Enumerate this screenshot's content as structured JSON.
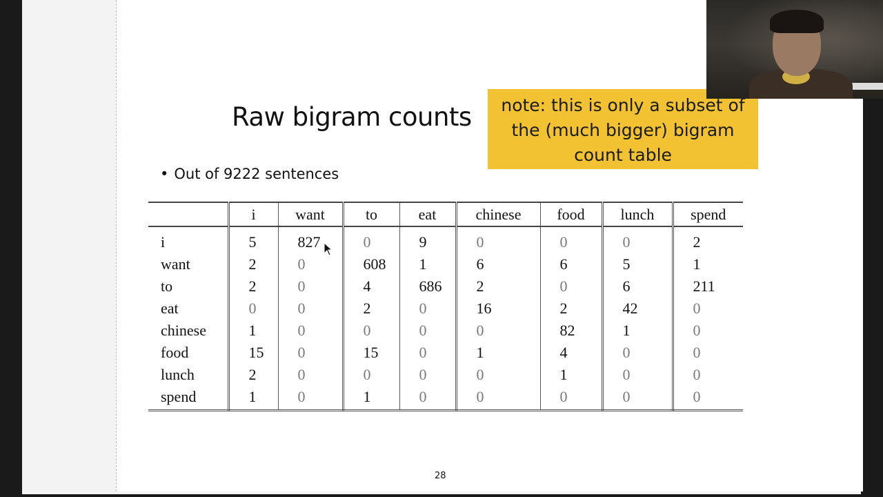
{
  "slide": {
    "title": "Raw bigram counts",
    "bullet": "Out of 9222 sentences",
    "page_number": "28"
  },
  "note": {
    "lines": [
      "note: this is only a subset of",
      "the (much bigger) bigram",
      "count table"
    ],
    "color": "#f2c232"
  },
  "table": {
    "columns": [
      "i",
      "want",
      "to",
      "eat",
      "chinese",
      "food",
      "lunch",
      "spend"
    ],
    "rows": [
      {
        "word": "i",
        "counts": [
          "5",
          "827",
          "0",
          "9",
          "0",
          "0",
          "0",
          "2"
        ]
      },
      {
        "word": "want",
        "counts": [
          "2",
          "0",
          "608",
          "1",
          "6",
          "6",
          "5",
          "1"
        ]
      },
      {
        "word": "to",
        "counts": [
          "2",
          "0",
          "4",
          "686",
          "2",
          "0",
          "6",
          "211"
        ]
      },
      {
        "word": "eat",
        "counts": [
          "0",
          "0",
          "2",
          "0",
          "16",
          "2",
          "42",
          "0"
        ]
      },
      {
        "word": "chinese",
        "counts": [
          "1",
          "0",
          "0",
          "0",
          "0",
          "82",
          "1",
          "0"
        ]
      },
      {
        "word": "food",
        "counts": [
          "15",
          "0",
          "15",
          "0",
          "1",
          "4",
          "0",
          "0"
        ]
      },
      {
        "word": "lunch",
        "counts": [
          "2",
          "0",
          "0",
          "0",
          "0",
          "1",
          "0",
          "0"
        ]
      },
      {
        "word": "spend",
        "counts": [
          "1",
          "0",
          "1",
          "0",
          "0",
          "0",
          "0",
          "0"
        ]
      }
    ]
  },
  "webcam": {
    "icon": "webcam-person-icon"
  },
  "cursor": {
    "icon": "mouse-pointer-icon"
  }
}
